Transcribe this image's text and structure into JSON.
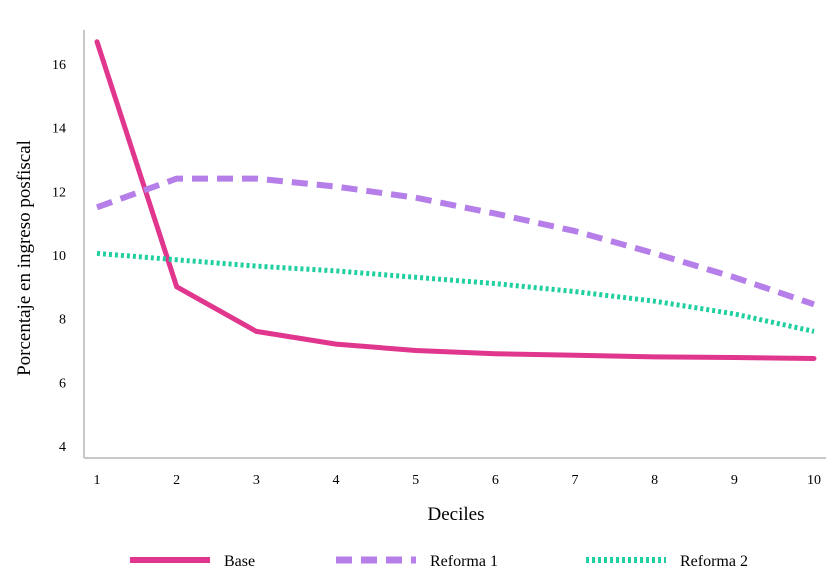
{
  "chart_data": {
    "type": "line",
    "title": "",
    "xlabel": "Deciles",
    "ylabel": "Porcentaje en ingreso posfiscal",
    "x": [
      1,
      2,
      3,
      4,
      5,
      6,
      7,
      8,
      9,
      10
    ],
    "xlim": [
      1,
      10
    ],
    "ylim": [
      4,
      17
    ],
    "yticks": [
      4,
      6,
      8,
      10,
      12,
      14,
      16
    ],
    "grid": false,
    "legend_position": "bottom",
    "series": [
      {
        "name": "Base",
        "color": "#e0368e",
        "style": "solid",
        "values": [
          16.7,
          9.0,
          7.6,
          7.2,
          7.0,
          6.9,
          6.85,
          6.8,
          6.78,
          6.75
        ]
      },
      {
        "name": "Reforma 1",
        "color": "#b57ee8",
        "style": "dashed",
        "values": [
          11.5,
          12.4,
          12.4,
          12.15,
          11.8,
          11.3,
          10.75,
          10.05,
          9.3,
          8.45
        ]
      },
      {
        "name": "Reforma 2",
        "color": "#1fcf9f",
        "style": "dotted",
        "values": [
          10.05,
          9.85,
          9.65,
          9.5,
          9.3,
          9.1,
          8.85,
          8.55,
          8.15,
          7.6
        ]
      }
    ]
  }
}
